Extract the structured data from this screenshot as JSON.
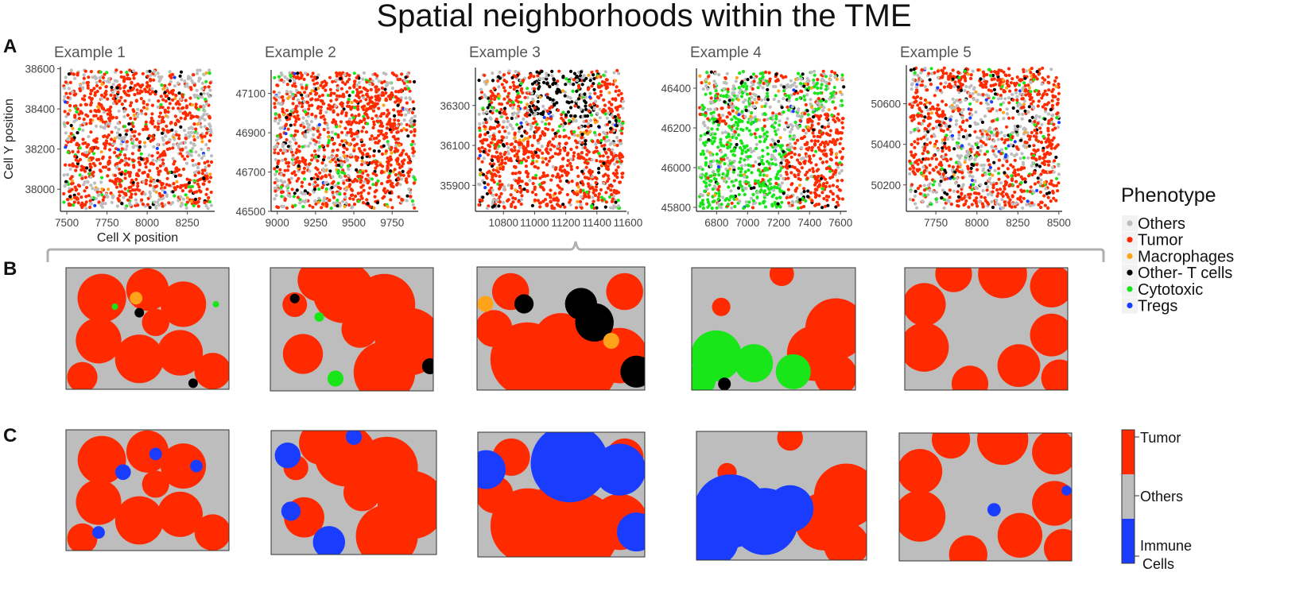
{
  "title": "Spatial neighborhoods within the TME",
  "panel_labels": [
    "A",
    "B",
    "C"
  ],
  "colors": {
    "Others": "#bdbdbd",
    "Tumor": "#ff2a00",
    "Macrophages": "#ffa31a",
    "Other- T cells": "#000000",
    "Cytotoxic": "#19e619",
    "Tregs": "#1a3cff",
    "Immune": "#1a3cff"
  },
  "chart_data": [
    {
      "type": "scatter",
      "title": "Example 1",
      "xlabel": "Cell X position",
      "ylabel": "Cell Y position",
      "xlim": [
        7460,
        8420
      ],
      "ylim": [
        37890,
        38610
      ],
      "xticks": [
        7500,
        7750,
        8000,
        8250
      ],
      "yticks": [
        38000,
        38200,
        38400,
        38600
      ],
      "series": [
        "Others",
        "Tumor",
        "Macrophages",
        "Other- T cells",
        "Cytotoxic",
        "Tregs"
      ]
    },
    {
      "type": "scatter",
      "title": "Example 2",
      "xlabel": "",
      "ylabel": "",
      "xlim": [
        8960,
        9920
      ],
      "ylim": [
        46500,
        47220
      ],
      "xticks": [
        9000,
        9250,
        9500,
        9750
      ],
      "yticks": [
        46500,
        46700,
        46900,
        47100
      ],
      "series": [
        "Others",
        "Tumor",
        "Macrophages",
        "Other- T cells",
        "Cytotoxic",
        "Tregs"
      ]
    },
    {
      "type": "scatter",
      "title": "Example 3",
      "xlabel": "",
      "ylabel": "",
      "xlim": [
        10620,
        11590
      ],
      "ylim": [
        35770,
        36490
      ],
      "xticks": [
        10800,
        11000,
        11200,
        11400,
        11600
      ],
      "yticks": [
        35900,
        36100,
        36300
      ],
      "series": [
        "Others",
        "Tumor",
        "Macrophages",
        "Other- T cells",
        "Cytotoxic",
        "Tregs"
      ]
    },
    {
      "type": "scatter",
      "title": "Example 4",
      "xlabel": "",
      "ylabel": "",
      "xlim": [
        6670,
        7640
      ],
      "ylim": [
        45780,
        46500
      ],
      "xticks": [
        6800,
        7000,
        7200,
        7400,
        7600
      ],
      "yticks": [
        45800,
        46000,
        46200,
        46400
      ],
      "series": [
        "Others",
        "Tumor",
        "Macrophages",
        "Other- T cells",
        "Cytotoxic",
        "Tregs"
      ]
    },
    {
      "type": "scatter",
      "title": "Example 5",
      "xlabel": "",
      "ylabel": "",
      "xlim": [
        7570,
        8520
      ],
      "ylim": [
        50070,
        50790
      ],
      "xticks": [
        7750,
        8000,
        8250,
        8500
      ],
      "yticks": [
        50200,
        50400,
        50600
      ],
      "series": [
        "Others",
        "Tumor",
        "Macrophages",
        "Other- T cells",
        "Cytotoxic",
        "Tregs"
      ]
    },
    {
      "type": "heatmap",
      "title": "",
      "panel": "B",
      "categories": [
        "Others",
        "Tumor",
        "Macrophages",
        "Other- T cells",
        "Cytotoxic",
        "Tregs"
      ]
    },
    {
      "type": "heatmap",
      "title": "",
      "panel": "C",
      "categories": [
        "Tumor",
        "Others",
        "Immune Cells"
      ]
    }
  ],
  "legend": {
    "title": "Phenotype",
    "items": [
      "Others",
      "Tumor",
      "Macrophages",
      "Other- T cells",
      "Cytotoxic",
      "Tregs"
    ]
  },
  "colorbar": {
    "labels": [
      "Tumor",
      "Others",
      "Immune",
      "Cells"
    ]
  }
}
